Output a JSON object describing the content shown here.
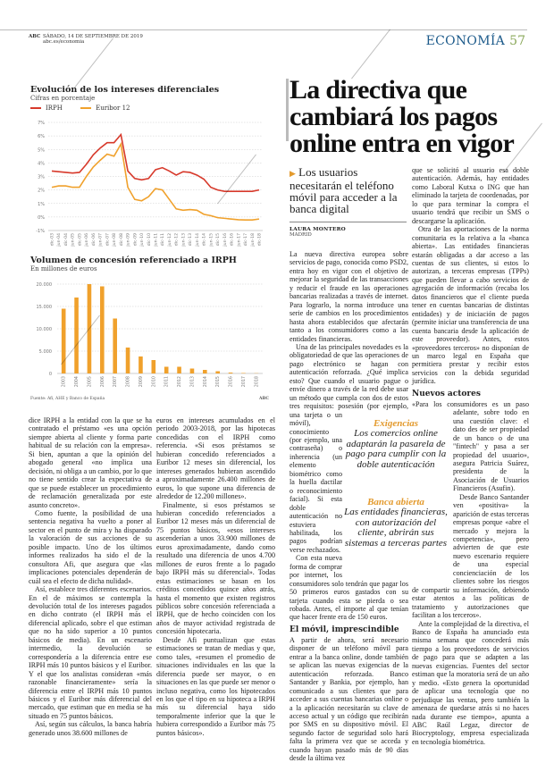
{
  "header": {
    "brand": "ABC",
    "date": "SÁBADO, 14 DE SEPTIEMBRE DE 2019",
    "url": "abc.es/economia",
    "section": "ECONOMÍA",
    "page": "57"
  },
  "watermark": "ABC",
  "colors": {
    "irph": "#d7392b",
    "euribor": "#f0a12c",
    "section": "#1c5a8a",
    "accent": "#e39a2d"
  },
  "chart_data": [
    {
      "type": "line",
      "title": "Evolución de los intereses diferenciales",
      "subtitle": "Cifras en porcentaje",
      "x": [
        "dic-03",
        "jun-04",
        "dic-04",
        "jun-05",
        "dic-05",
        "jun-06",
        "dic-06",
        "jun-07",
        "dic-07",
        "jun-08",
        "dic-08",
        "jun-09",
        "dic-09",
        "jun-10",
        "dic-10",
        "jun-11",
        "dic-11",
        "jun-12",
        "dic-12",
        "jun-13",
        "dic-13",
        "jun-14",
        "dic-14",
        "jun-15",
        "dic-15",
        "jun-16",
        "dic-16",
        "jun-17",
        "dic-17",
        "jun-18",
        "dic-18"
      ],
      "yticks": [
        "-1%",
        "0%",
        "1%",
        "2%",
        "3%",
        "4%",
        "5%",
        "6%",
        "7%"
      ],
      "ylim": [
        -1,
        7
      ],
      "grid": true,
      "legend": "top-left",
      "series": [
        {
          "name": "IRPH",
          "values": [
            3.4,
            3.35,
            3.3,
            3.25,
            3.3,
            3.9,
            4.6,
            5.1,
            5.5,
            5.5,
            6.1,
            3.4,
            2.85,
            2.75,
            2.85,
            3.5,
            3.65,
            3.4,
            3.1,
            3.35,
            3.3,
            3.1,
            2.8,
            2.2,
            2.0,
            1.9,
            1.9,
            1.9,
            1.9,
            1.9,
            2.0
          ]
        },
        {
          "name": "Euribor 12",
          "values": [
            2.2,
            2.3,
            2.3,
            2.2,
            2.2,
            3.0,
            3.7,
            4.2,
            4.65,
            4.5,
            5.4,
            2.2,
            1.3,
            1.2,
            1.5,
            2.1,
            2.0,
            1.3,
            0.6,
            0.5,
            0.55,
            0.5,
            0.2,
            0.1,
            -0.05,
            -0.1,
            -0.15,
            -0.2,
            -0.22,
            -0.22,
            -0.15
          ]
        }
      ]
    },
    {
      "type": "bar",
      "title": "Volumen de concesión referenciado a IRPH",
      "subtitle": "En millones de euros",
      "categories": [
        "2003",
        "2004",
        "2005",
        "2006",
        "2007",
        "2008",
        "2009",
        "2010",
        "2011",
        "2012",
        "2013",
        "2014",
        "2015",
        "2016",
        "2017",
        "2018"
      ],
      "values": [
        14500,
        17000,
        20000,
        19500,
        12300,
        5800,
        3800,
        3000,
        1500,
        1500,
        1100,
        800,
        500,
        200,
        100,
        50
      ],
      "yticks": [
        "0",
        "5.000",
        "10.000",
        "15.000",
        "20.000"
      ],
      "ylim": [
        0,
        20000
      ],
      "grid": true,
      "source": "Fuente: Afi, AHE y Banco de España",
      "credit": "ABC"
    }
  ],
  "article": {
    "headline": "La directiva que cambiará los pagos online entra en vigor",
    "deck": "Los usuarios necesitarán el teléfono móvil para acceder a la banca digital",
    "author": "LAURA MONTERO",
    "place": "MADRID",
    "col3": [
      "La nueva directiva europea sobre servicios de pago, conocida como PSD2, entra hoy en vigor con el objetivo de mejorar la seguridad de las transacciones y reducir el fraude en las operaciones bancarias realizadas a través de internet. Para lograrlo, la norma introduce una serie de cambios en los procedimientos hasta ahora establecidos que afectarán tanto a los consumidores como a las entidades financieras.",
      "Una de las principales novedades es la obligatoriedad de que las operaciones de pago electrónico se hagan con autenticación reforzada. ¿Qué implica esto? Que cuando el usuario pague o envíe dinero a través de la red debe usar un método que cumpla con dos de estos tres requisitos: posesión (por ejemplo, una tarjeta o un móvil), conocimiento (por ejemplo, una contraseña) o inherencia (un elemento biométrico como la huella dactilar o reconocimiento facial). Si esta doble autenticación no estuviera habilitada, los pagos podrían verse rechazados.",
      "Con esta nueva forma de comprar por internet, los consumidores solo tendrán que pagar los 50 primeros euros gastados con su tarjeta cuando esta se pierda o sea robada. Antes, el importe al que tenían que hacer frente era de 150 euros."
    ],
    "subhead1": "El móvil, imprescindible",
    "col3b": [
      "A partir de ahora, será necesario disponer de un teléfono móvil para entrar a la banca online, donde también se aplican las nuevas exigencias de la autenticación reforzada. Banco Santander y Bankia, por ejemplo, han comunicado a sus clientes que para acceder a sus cuentas bancarias online o a la aplicación necesitarán su clave de acceso actual y un código que recibirán por SMS en su dispositivo móvil. El segundo factor de seguridad solo hará falta la primera vez que se acceda y cuando hayan pasado más de 90 días desde la última vez"
    ],
    "col4": [
      "que se solicitó al usuario esa doble autenticación. Además, hay entidades como Laboral Kutxa o ING que han eliminado la tarjeta de coordenadas, por lo que para terminar la compra el usuario tendrá que recibir un SMS o descargarse la aplicación.",
      "Otra de las aportaciones de la norma comunitaria es la relativa a la «banca abierta». Las entidades financieras estarán obligadas a dar acceso a las cuentas de sus clientes, si estos lo autorizan, a terceras empresas (TPPs) que pueden llevar a cabo servicios de agregación de información (recaba los datos financieros que el cliente pueda tener en cuentas bancarias de distintas entidades) y de iniciación de pagos (permite iniciar una transferencia de una cuenta bancaria desde la aplicación de este proveedor). Antes, estos «proveedores terceros» no disponían de un marco legal en España que permitiera prestar y recibir estos servicios con la debida seguridad jurídica."
    ],
    "subhead2": "Nuevos actores",
    "col4b": [
      "«Para los consumidores es un paso adelante, sobre todo en una cuestión clave: el dato des de ser propiedad de un banco o de una \"fintech\" y pasa a ser propiedad del usuario», asegura Patricia Suárez, presidenta de la Asociación de Usuarios Financieros (Asufin).",
      "Desde Banco Santander ven «positiva» la aparición de estas terceras empresas porque «abre el mercado y mejora la competencia», pero advierten de que este nuevo escenario requiere de una especial concienciación de los clientes sobre los riesgos de compartir su información, debiendo estar atentos a las políticas de tratamiento y autorizaciones que facilitan a los terceros».",
      "Ante la complejidad de la directiva, el Banco de España ha anunciado esta misma semana que concederá más tiempo a los proveedores de servicios de pago para que se adapten a las nuevas exigencias. Fuentes del sector estiman que la moratoria será de un año y medio. «Esto genera la oportunidad de aplicar una tecnología que no perjudique las ventas, pero también la amenaza de quedarse atrás si no haces nada durante ese tiempo», apunta a ABC Raúl Legaz, director de Biocryptology, empresa especializada en tecnología biométrica."
    ],
    "pullquotes": [
      {
        "kicker": "Exigencias",
        "text": "Los comercios online adaptarán la pasarela de pago para cumplir con la doble autenticación"
      },
      {
        "kicker": "Banca abierta",
        "text": "Las entidades financieras, con autorización del cliente, abrirán sus sistemas a terceras partes"
      }
    ]
  },
  "prev_article": {
    "col1": [
      "dice IRPH a la entidad con la que se ha contratado el préstamo «es una opción siempre abierta al cliente y forma parte habitual de su relación con la empresa». Si bien, apuntan a que la opinión del abogado general «no implica una decisión, ni obliga a un cambio, por lo que no tiene sentido crear la expectativa de que se puede establecer un procedimiento de reclamación generalizada por este asunto concreto».",
      "Como fuente, la posibilidad de una sentencia negativa ha vuelto a poner al sector en el punto de mira y ha disparado la valoración de sus acciones de su posible impacto. Uno de los últimos informes realizados ha sido el de la consultora Afi, que asegura que «las implicaciones potenciales dependerán de cuál sea el efecto de dicha nulidad».",
      "Así, establece tres diferentes escenarios. En el de máximos se contempla la devolución total de los intereses pagados en dicho contrato (el IRPH más el diferencial aplicado, sobre el que estiman que no ha sido superior a 10 puntos básicos de media). En un escenario intermedio, la devolución se correspondería a la diferencia entre ese IRPH más 10 puntos básicos y el Euribor. Y el que los analistas consideran «más razonable financieramente» sería la diferencia entre el IRPH más 10 puntos básicos y el Euribor más diferencial del mercado, que estiman que en media se ha situado en 75 puntos básicos.",
      "Así, según sus cálculos, la banca habría generado unos 38.600 millones de"
    ],
    "col2": [
      "euros en intereses acumulados en el periodo 2003-2018, por las hipotecas concedidas con el IRPH como referencia. «Si esos préstamos se hubieran concedido referenciados a Euribor 12 meses sin diferencial, los intereses generados hubieran ascendido a aproximadamente 26.400 millones de euros, lo que supone una diferencia de alrededor de 12.200 millones».",
      "Finalmente, si esos préstamos se hubieran concedido referenciados a Euribor 12 meses más un diferencial de 75 puntos básicos, «esos intereses ascenderían a unos 33.900 millones de euros aproximadamente, dando como resultado una diferencia de unos 4.700 millones de euros frente a lo pagado bajo IRPH más su diferencial». Todas estas estimaciones se basan en los créditos concedidos quince años atrás, hasta el momento que existen registros públicos sobre concesión referenciada a IRPH, que de hecho coinciden con los años de mayor actividad registrada de concesión hipotecaria.",
      "Desde Afi puntualizan que estas estimaciones se tratan de medias y que, como tales, «resumen el promedio de situaciones individuales en las que la diferencia puede ser mayor, o en situaciones en las que puede ser menor o incluso negativa, como los hipotecados en los que el tipo en su hipoteca a IRPH más su diferencial haya sido temporalmente inferior que la que le hubiera correspondido a Euribor más 75 puntos básicos»."
    ]
  }
}
